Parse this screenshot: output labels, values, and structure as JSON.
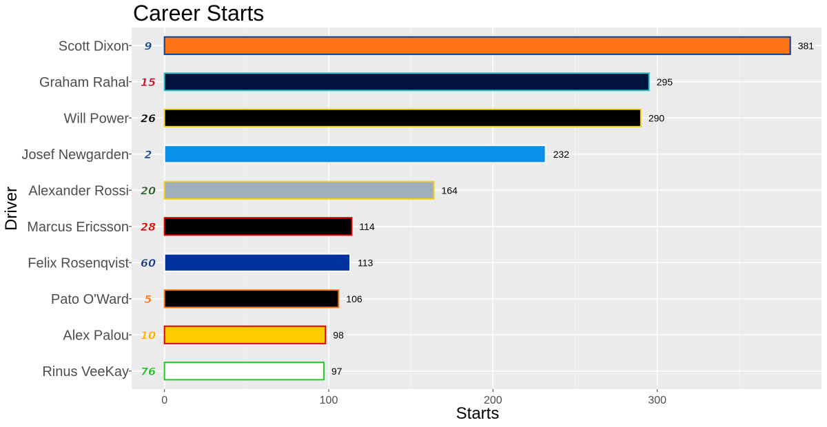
{
  "chart_data": {
    "type": "bar",
    "orientation": "horizontal",
    "title": "Career Starts",
    "xlabel": "Starts",
    "ylabel": "Driver",
    "xlim": [
      -20,
      400
    ],
    "xticks": [
      0,
      100,
      200,
      300
    ],
    "grid": true,
    "background": "#ebebeb",
    "categories": [
      "Scott Dixon",
      "Graham Rahal",
      "Will Power",
      "Josef Newgarden",
      "Alexander Rossi",
      "Marcus Ericsson",
      "Felix Rosenqvist",
      "Pato O'Ward",
      "Alex Palou",
      "Rinus VeeKay"
    ],
    "values": [
      381,
      295,
      290,
      232,
      164,
      114,
      113,
      106,
      98,
      97
    ],
    "car_numbers": [
      "9",
      "15",
      "26",
      "2",
      "20",
      "28",
      "60",
      "5",
      "10",
      "76"
    ],
    "fill_colors": [
      "#ff7518",
      "#00133f",
      "#000000",
      "#0a8fe8",
      "#9fb0bb",
      "#000000",
      "#0033a0",
      "#000000",
      "#ffcc00",
      "#ffffff"
    ],
    "outline_colors": [
      "#0a3d91",
      "#28c4c4",
      "#f0d020",
      "#ffffff",
      "#f0d020",
      "#e00000",
      "#ffffff",
      "#ff7518",
      "#e00000",
      "#22cc22"
    ],
    "number_colors": [
      "#1a4a8a",
      "#c8102e",
      "#000000",
      "#1a4a8a",
      "#2e5e2e",
      "#e00000",
      "#1a3a8a",
      "#ff7518",
      "#ffaa00",
      "#22bb22"
    ]
  }
}
